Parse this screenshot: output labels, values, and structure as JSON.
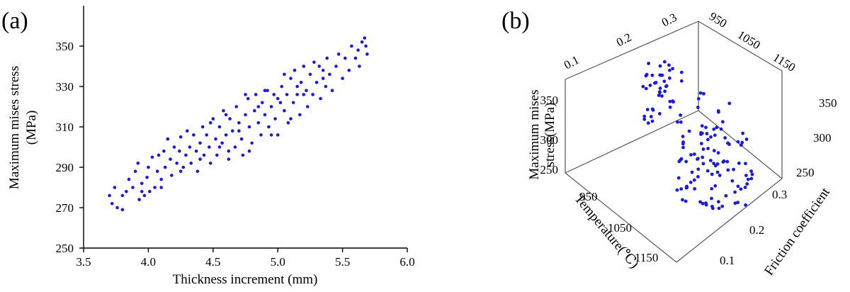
{
  "chart_data": [
    {
      "panel_label": "(a)",
      "type": "scatter",
      "title": "",
      "xlabel": "Thickness increment (mm)",
      "ylabel_line1": "Maximum mises stress",
      "ylabel_line2": "(MPa)",
      "xlim": [
        3.5,
        6.0
      ],
      "ylim": [
        250,
        370
      ],
      "xticks": [
        "3.5",
        "4.0",
        "4.5",
        "5.0",
        "5.5",
        "6.0"
      ],
      "yticks": [
        "250",
        "270",
        "290",
        "310",
        "330",
        "350"
      ],
      "color": "#1a1adf",
      "points": [
        [
          3.7,
          276
        ],
        [
          3.72,
          272
        ],
        [
          3.74,
          280
        ],
        [
          3.76,
          270
        ],
        [
          3.8,
          269
        ],
        [
          3.8,
          276
        ],
        [
          3.83,
          278
        ],
        [
          3.85,
          284
        ],
        [
          3.88,
          280
        ],
        [
          3.9,
          288
        ],
        [
          3.92,
          292
        ],
        [
          3.93,
          274
        ],
        [
          3.95,
          282
        ],
        [
          3.97,
          276
        ],
        [
          3.99,
          285
        ],
        [
          4.0,
          290
        ],
        [
          4.01,
          278
        ],
        [
          4.03,
          295
        ],
        [
          4.05,
          280
        ],
        [
          4.07,
          288
        ],
        [
          4.08,
          296
        ],
        [
          4.1,
          284
        ],
        [
          4.12,
          298
        ],
        [
          4.13,
          290
        ],
        [
          4.15,
          304
        ],
        [
          4.17,
          294
        ],
        [
          4.18,
          286
        ],
        [
          4.2,
          300
        ],
        [
          4.22,
          292
        ],
        [
          4.24,
          298
        ],
        [
          4.25,
          305
        ],
        [
          4.27,
          290
        ],
        [
          4.29,
          296
        ],
        [
          4.3,
          308
        ],
        [
          4.32,
          300
        ],
        [
          4.33,
          292
        ],
        [
          4.35,
          306
        ],
        [
          4.37,
          298
        ],
        [
          4.38,
          288
        ],
        [
          4.4,
          302
        ],
        [
          4.42,
          310
        ],
        [
          4.43,
          296
        ],
        [
          4.45,
          306
        ],
        [
          4.47,
          300
        ],
        [
          4.48,
          292
        ],
        [
          4.5,
          314
        ],
        [
          4.52,
          304
        ],
        [
          4.53,
          296
        ],
        [
          4.55,
          310
        ],
        [
          4.57,
          302
        ],
        [
          4.58,
          318
        ],
        [
          4.6,
          306
        ],
        [
          4.62,
          298
        ],
        [
          4.63,
          314
        ],
        [
          4.65,
          308
        ],
        [
          4.67,
          300
        ],
        [
          4.68,
          320
        ],
        [
          4.7,
          312
        ],
        [
          4.72,
          304
        ],
        [
          4.73,
          296
        ],
        [
          4.75,
          316
        ],
        [
          4.77,
          324
        ],
        [
          4.78,
          310
        ],
        [
          4.8,
          302
        ],
        [
          4.82,
          318
        ],
        [
          4.83,
          326
        ],
        [
          4.85,
          312
        ],
        [
          4.87,
          306
        ],
        [
          4.88,
          322
        ],
        [
          4.9,
          316
        ],
        [
          4.92,
          328
        ],
        [
          4.93,
          310
        ],
        [
          4.95,
          320
        ],
        [
          4.97,
          326
        ],
        [
          4.98,
          314
        ],
        [
          5.0,
          306
        ],
        [
          5.02,
          322
        ],
        [
          5.03,
          330
        ],
        [
          5.05,
          318
        ],
        [
          5.07,
          326
        ],
        [
          5.08,
          312
        ],
        [
          5.1,
          334
        ],
        [
          5.12,
          322
        ],
        [
          5.13,
          338
        ],
        [
          5.15,
          326
        ],
        [
          5.17,
          316
        ],
        [
          5.18,
          332
        ],
        [
          5.2,
          340
        ],
        [
          5.22,
          328
        ],
        [
          5.23,
          320
        ],
        [
          5.25,
          336
        ],
        [
          5.27,
          326
        ],
        [
          5.28,
          342
        ],
        [
          5.3,
          332
        ],
        [
          5.32,
          340
        ],
        [
          5.33,
          324
        ],
        [
          5.35,
          338
        ],
        [
          5.37,
          330
        ],
        [
          5.38,
          344
        ],
        [
          5.4,
          336
        ],
        [
          5.42,
          328
        ],
        [
          5.45,
          340
        ],
        [
          5.47,
          346
        ],
        [
          5.5,
          334
        ],
        [
          5.52,
          344
        ],
        [
          5.55,
          338
        ],
        [
          5.57,
          350
        ],
        [
          5.6,
          344
        ],
        [
          5.62,
          348
        ],
        [
          5.63,
          340
        ],
        [
          5.65,
          352
        ],
        [
          5.67,
          354
        ],
        [
          5.68,
          350
        ],
        [
          5.69,
          346
        ],
        [
          4.4,
          294
        ],
        [
          4.55,
          300
        ],
        [
          4.7,
          308
        ],
        [
          4.85,
          320
        ],
        [
          5.0,
          324
        ],
        [
          5.15,
          330
        ],
        [
          4.25,
          288
        ],
        [
          4.1,
          280
        ],
        [
          3.95,
          278
        ],
        [
          4.6,
          316
        ],
        [
          4.75,
          326
        ],
        [
          4.9,
          328
        ],
        [
          5.05,
          336
        ],
        [
          5.2,
          326
        ],
        [
          5.35,
          334
        ],
        [
          4.48,
          312
        ],
        [
          4.62,
          294
        ],
        [
          4.78,
          298
        ],
        [
          4.95,
          306
        ],
        [
          5.1,
          314
        ]
      ]
    },
    {
      "panel_label": "(b)",
      "type": "scatter",
      "title": "",
      "zlabel_line1": "Maximum mises",
      "zlabel_line2": "stress(MPa)",
      "temperature_label": "Temperature(℃)",
      "friction_label": "Friction coefficient",
      "friction_ticks": [
        "0.1",
        "0.2",
        "0.3"
      ],
      "temperature_ticks": [
        "950",
        "1050",
        "1150"
      ],
      "stress_ticks": [
        "250",
        "300",
        "350"
      ],
      "color": "#1a1adf"
    }
  ]
}
